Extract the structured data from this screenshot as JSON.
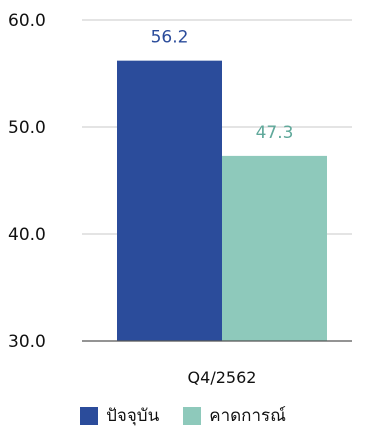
{
  "chart_data": {
    "type": "bar",
    "categories": [
      "Q4/2562"
    ],
    "series": [
      {
        "name": "ปัจจุบัน",
        "values": [
          56.2
        ],
        "color": "#2b4c9b"
      },
      {
        "name": "คาดการณ์",
        "values": [
          47.3
        ],
        "color": "#8ec9bb"
      }
    ],
    "ylim": [
      30,
      60
    ],
    "yticks": [
      "60.0",
      "50.0",
      "40.0",
      "30.0"
    ],
    "ytick_values": [
      60,
      50,
      40,
      30
    ],
    "data_labels": [
      "56.2",
      "47.3"
    ],
    "data_label_colors": [
      "#2b4c9b",
      "#5fa89a"
    ],
    "title": "",
    "xlabel": "",
    "ylabel": "",
    "grid": "horizontal",
    "legend_position": "bottom"
  }
}
